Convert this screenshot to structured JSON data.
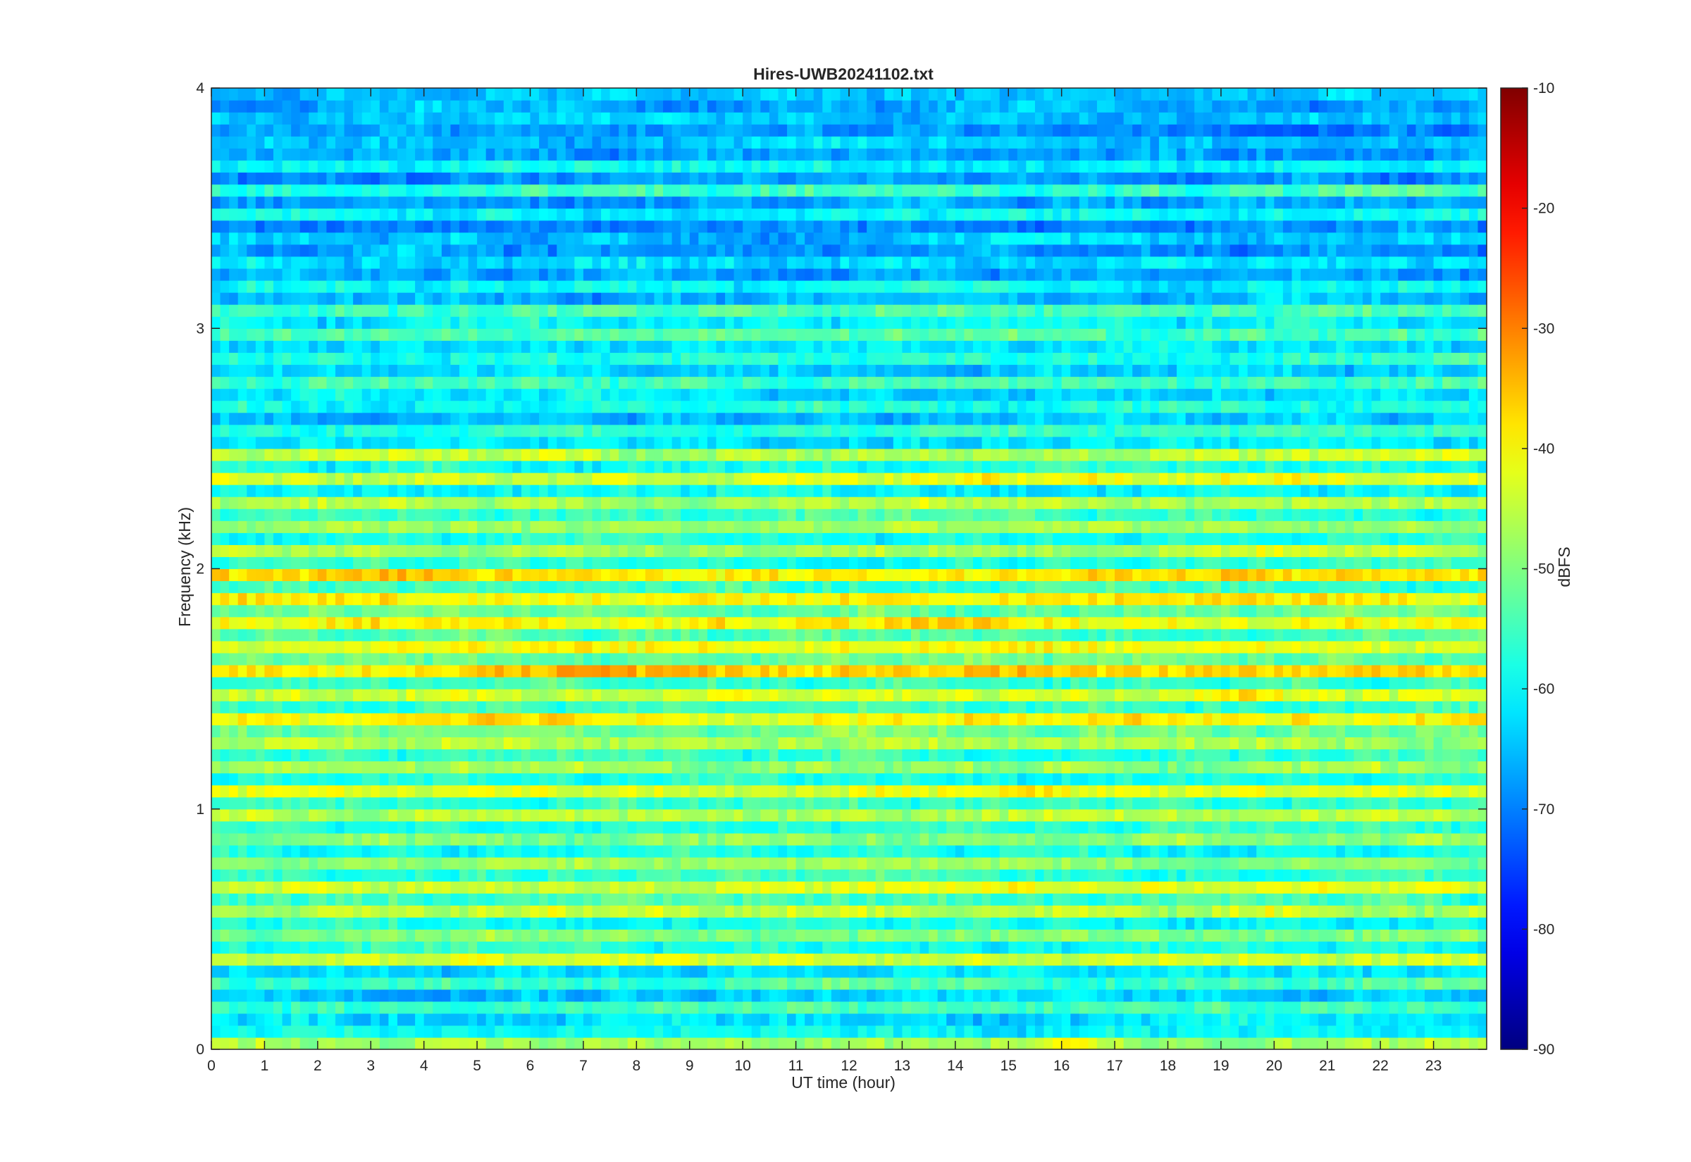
{
  "chart_data": {
    "type": "heatmap",
    "title": "Hires-UWB20241102.txt",
    "xlabel": "UT time (hour)",
    "ylabel": "Frequency (kHz)",
    "xlim": [
      0,
      24
    ],
    "ylim": [
      0,
      4
    ],
    "x_ticks": [
      "0",
      "1",
      "2",
      "3",
      "4",
      "5",
      "6",
      "7",
      "8",
      "9",
      "10",
      "11",
      "12",
      "13",
      "14",
      "15",
      "16",
      "17",
      "18",
      "19",
      "20",
      "21",
      "22",
      "23"
    ],
    "y_ticks": [
      "0",
      "1",
      "2",
      "3",
      "4"
    ],
    "colorbar": {
      "label": "dBFS",
      "range": [
        -90,
        -10
      ],
      "ticks": [
        "-10",
        "-20",
        "-30",
        "-40",
        "-50",
        "-60",
        "-70",
        "-80",
        "-90"
      ],
      "colormap": "jet"
    },
    "band_profile": {
      "frequency_khz": [
        0.0,
        0.05,
        0.1,
        0.15,
        0.2,
        0.25,
        0.3,
        0.35,
        0.4,
        0.45,
        0.5,
        0.55,
        0.6,
        0.65,
        0.7,
        0.75,
        0.8,
        0.85,
        0.9,
        0.95,
        1.0,
        1.05,
        1.1,
        1.15,
        1.2,
        1.25,
        1.3,
        1.35,
        1.4,
        1.45,
        1.5,
        1.55,
        1.6,
        1.65,
        1.7,
        1.75,
        1.8,
        1.85,
        1.9,
        1.95,
        2.0,
        2.05,
        2.1,
        2.15,
        2.2,
        2.25,
        2.3,
        2.35,
        2.4,
        2.45,
        2.5,
        2.55,
        2.6,
        2.65,
        2.7,
        2.75,
        2.8,
        2.85,
        2.9,
        2.95,
        3.0,
        3.05,
        3.1,
        3.15,
        3.2,
        3.25,
        3.3,
        3.35,
        3.4,
        3.45,
        3.5,
        3.55,
        3.6,
        3.65,
        3.7,
        3.75,
        3.8,
        3.85,
        3.9,
        3.95
      ],
      "typical_dbfs": [
        -46,
        -60,
        -62,
        -55,
        -63,
        -55,
        -62,
        -44,
        -58,
        -50,
        -58,
        -45,
        -55,
        -43,
        -56,
        -48,
        -58,
        -50,
        -56,
        -46,
        -55,
        -42,
        -58,
        -48,
        -56,
        -47,
        -52,
        -40,
        -55,
        -43,
        -55,
        -36,
        -52,
        -41,
        -54,
        -40,
        -52,
        -39,
        -55,
        -38,
        -56,
        -46,
        -58,
        -48,
        -56,
        -46,
        -60,
        -42,
        -58,
        -45,
        -62,
        -56,
        -64,
        -58,
        -62,
        -55,
        -63,
        -57,
        -62,
        -54,
        -60,
        -55,
        -66,
        -60,
        -67,
        -62,
        -68,
        -64,
        -69,
        -60,
        -67,
        -56,
        -68,
        -60,
        -67,
        -64,
        -68,
        -64,
        -67,
        -65
      ]
    }
  }
}
